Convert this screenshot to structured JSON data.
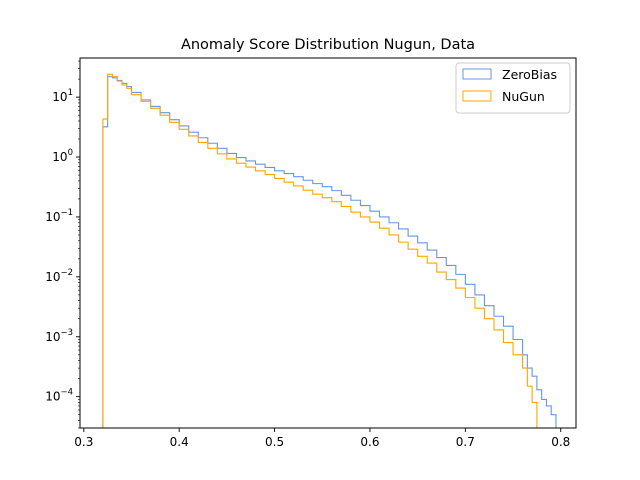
{
  "chart_data": {
    "type": "histogram-step",
    "title": "Anomaly Score Distribution Nugun, Data",
    "xlabel": "",
    "ylabel": "",
    "xlim": [
      0.296,
      0.816
    ],
    "ylim": [
      3e-05,
      45
    ],
    "yscale": "log",
    "grid": false,
    "legend_position": "top-right",
    "x_ticks": [
      {
        "value": 0.3,
        "label": "0.3"
      },
      {
        "value": 0.4,
        "label": "0.4"
      },
      {
        "value": 0.5,
        "label": "0.5"
      },
      {
        "value": 0.6,
        "label": "0.6"
      },
      {
        "value": 0.7,
        "label": "0.7"
      },
      {
        "value": 0.8,
        "label": "0.8"
      }
    ],
    "y_ticks": [
      {
        "value": 0.0001,
        "base": "10",
        "exp": "−4"
      },
      {
        "value": 0.001,
        "base": "10",
        "exp": "−3"
      },
      {
        "value": 0.01,
        "base": "10",
        "exp": "−2"
      },
      {
        "value": 0.1,
        "base": "10",
        "exp": "−1"
      },
      {
        "value": 1,
        "base": "10",
        "exp": "0"
      },
      {
        "value": 10,
        "base": "10",
        "exp": "1"
      }
    ],
    "series": [
      {
        "name": "ZeroBias",
        "color": "#6495ed",
        "points": [
          [
            0.32,
            3.2
          ],
          [
            0.325,
            22
          ],
          [
            0.33,
            21
          ],
          [
            0.335,
            19
          ],
          [
            0.34,
            17
          ],
          [
            0.345,
            15
          ],
          [
            0.35,
            12
          ],
          [
            0.36,
            9
          ],
          [
            0.37,
            7
          ],
          [
            0.38,
            5.5
          ],
          [
            0.39,
            4.2
          ],
          [
            0.4,
            3.3
          ],
          [
            0.41,
            2.6
          ],
          [
            0.42,
            2.1
          ],
          [
            0.43,
            1.7
          ],
          [
            0.44,
            1.4
          ],
          [
            0.45,
            1.15
          ],
          [
            0.46,
            0.98
          ],
          [
            0.47,
            0.86
          ],
          [
            0.48,
            0.76
          ],
          [
            0.49,
            0.67
          ],
          [
            0.5,
            0.59
          ],
          [
            0.51,
            0.53
          ],
          [
            0.52,
            0.47
          ],
          [
            0.53,
            0.41
          ],
          [
            0.54,
            0.36
          ],
          [
            0.55,
            0.32
          ],
          [
            0.56,
            0.275
          ],
          [
            0.57,
            0.23
          ],
          [
            0.58,
            0.19
          ],
          [
            0.59,
            0.155
          ],
          [
            0.6,
            0.125
          ],
          [
            0.61,
            0.1
          ],
          [
            0.62,
            0.08
          ],
          [
            0.63,
            0.063
          ],
          [
            0.64,
            0.048
          ],
          [
            0.65,
            0.037
          ],
          [
            0.66,
            0.028
          ],
          [
            0.67,
            0.021
          ],
          [
            0.68,
            0.0155
          ],
          [
            0.69,
            0.011
          ],
          [
            0.7,
            0.0075
          ],
          [
            0.71,
            0.005
          ],
          [
            0.72,
            0.0033
          ],
          [
            0.73,
            0.0022
          ],
          [
            0.74,
            0.0015
          ],
          [
            0.75,
            0.0009
          ],
          [
            0.76,
            0.0005
          ],
          [
            0.765,
            0.0003
          ],
          [
            0.77,
            0.00022
          ],
          [
            0.775,
            0.00013
          ],
          [
            0.78,
            9e-05
          ],
          [
            0.785,
            7e-05
          ],
          [
            0.79,
            5e-05
          ]
        ]
      },
      {
        "name": "NuGun",
        "color": "#ffa500",
        "points": [
          [
            0.32,
            4.3
          ],
          [
            0.325,
            24
          ],
          [
            0.33,
            22
          ],
          [
            0.335,
            18.5
          ],
          [
            0.34,
            16
          ],
          [
            0.345,
            14
          ],
          [
            0.35,
            11
          ],
          [
            0.36,
            8.5
          ],
          [
            0.37,
            6.5
          ],
          [
            0.38,
            5
          ],
          [
            0.39,
            3.8
          ],
          [
            0.4,
            2.9
          ],
          [
            0.41,
            2.25
          ],
          [
            0.42,
            1.75
          ],
          [
            0.43,
            1.4
          ],
          [
            0.44,
            1.13
          ],
          [
            0.45,
            0.93
          ],
          [
            0.46,
            0.79
          ],
          [
            0.47,
            0.68
          ],
          [
            0.48,
            0.59
          ],
          [
            0.49,
            0.51
          ],
          [
            0.5,
            0.44
          ],
          [
            0.51,
            0.38
          ],
          [
            0.52,
            0.33
          ],
          [
            0.53,
            0.28
          ],
          [
            0.54,
            0.24
          ],
          [
            0.55,
            0.21
          ],
          [
            0.56,
            0.18
          ],
          [
            0.57,
            0.15
          ],
          [
            0.58,
            0.12
          ],
          [
            0.59,
            0.1
          ],
          [
            0.6,
            0.082
          ],
          [
            0.61,
            0.065
          ],
          [
            0.62,
            0.05
          ],
          [
            0.63,
            0.038
          ],
          [
            0.64,
            0.029
          ],
          [
            0.65,
            0.022
          ],
          [
            0.66,
            0.017
          ],
          [
            0.67,
            0.012
          ],
          [
            0.68,
            0.009
          ],
          [
            0.69,
            0.0065
          ],
          [
            0.7,
            0.0045
          ],
          [
            0.71,
            0.003
          ],
          [
            0.72,
            0.002
          ],
          [
            0.73,
            0.0013
          ],
          [
            0.74,
            0.0008
          ],
          [
            0.75,
            0.0005
          ],
          [
            0.76,
            0.0003
          ],
          [
            0.765,
            0.00015
          ],
          [
            0.77,
            8e-05
          ],
          [
            0.775,
            3e-05
          ],
          [
            0.78,
            3e-05
          ]
        ]
      }
    ]
  }
}
